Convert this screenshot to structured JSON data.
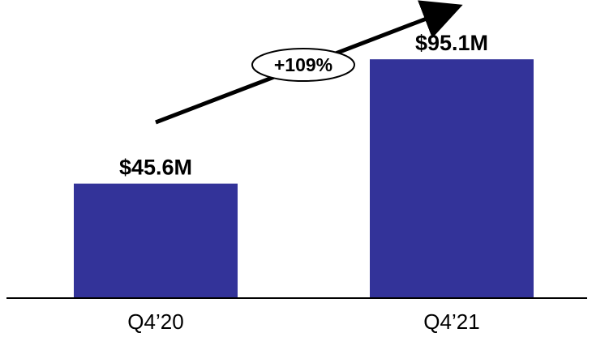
{
  "chart_data": {
    "type": "bar",
    "categories": [
      "Q4’20",
      "Q4’21"
    ],
    "values": [
      45.6,
      95.1
    ],
    "data_labels": [
      "$45.6M",
      "$95.1M"
    ],
    "units": "$M",
    "title": "",
    "xlabel": "",
    "ylabel": "",
    "ylim": [
      0,
      100
    ],
    "grid": false,
    "legend": "none",
    "annotation": {
      "text": "+109%",
      "shape": "ellipse on upward arrow"
    },
    "colors": {
      "bar": "#333399",
      "axis": "#000000",
      "arrow": "#000000"
    }
  }
}
